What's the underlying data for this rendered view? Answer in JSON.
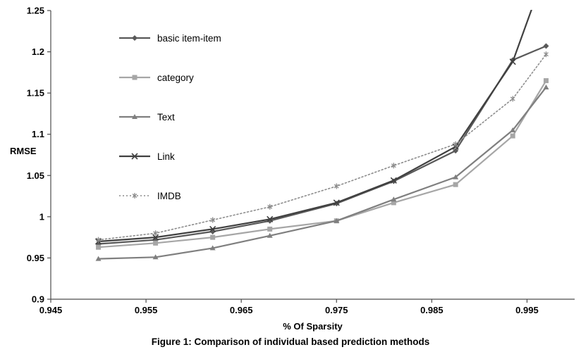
{
  "figure": {
    "caption": "Figure 1: Comparison of individual based prediction methods"
  },
  "chart_data": {
    "type": "line",
    "title": "",
    "xlabel": "% Of Sparsity",
    "ylabel": "RMSE",
    "xlim": [
      0.945,
      1.0
    ],
    "ylim": [
      0.9,
      1.25
    ],
    "grid": false,
    "legend_position": "inside-top-left",
    "x_ticks": [
      0.945,
      0.955,
      0.965,
      0.975,
      0.985,
      0.995
    ],
    "x_tick_labels": [
      "0.945",
      "0.955",
      "0.965",
      "0.975",
      "0.985",
      "0.995"
    ],
    "y_ticks": [
      0.9,
      0.95,
      1,
      1.05,
      1.1,
      1.15,
      1.2,
      1.25
    ],
    "y_tick_labels": [
      "0.9",
      "0.95",
      "1",
      "1.05",
      "1.1",
      "1.15",
      "1.2",
      "1.25"
    ],
    "x": [
      0.95,
      0.956,
      0.962,
      0.968,
      0.975,
      0.981,
      0.9875,
      0.9935,
      0.997
    ],
    "series": [
      {
        "name": "basic item-item",
        "marker": "diamond",
        "color": "#595959",
        "dash": null,
        "width": 2.2,
        "values": [
          0.967,
          0.972,
          0.982,
          0.995,
          1.016,
          1.043,
          1.08,
          1.19,
          1.207
        ]
      },
      {
        "name": "category",
        "marker": "square",
        "color": "#a6a6a6",
        "dash": null,
        "width": 2.2,
        "values": [
          0.963,
          0.968,
          0.975,
          0.985,
          0.995,
          1.017,
          1.039,
          1.098,
          1.165
        ]
      },
      {
        "name": "Text",
        "marker": "triangle",
        "color": "#7f7f7f",
        "dash": null,
        "width": 2.2,
        "values": [
          0.949,
          0.951,
          0.962,
          0.977,
          0.995,
          1.021,
          1.048,
          1.105,
          1.157
        ]
      },
      {
        "name": "Link",
        "marker": "x",
        "color": "#404040",
        "dash": null,
        "width": 2.2,
        "values": [
          0.97,
          0.975,
          0.985,
          0.997,
          1.017,
          1.044,
          1.085,
          1.188,
          1.3
        ]
      },
      {
        "name": "IMDB",
        "marker": "asterisk",
        "color": "#8c8c8c",
        "dash": "2 3",
        "width": 1.6,
        "values": [
          0.972,
          0.98,
          0.996,
          1.012,
          1.037,
          1.062,
          1.088,
          1.143,
          1.197
        ]
      }
    ]
  }
}
